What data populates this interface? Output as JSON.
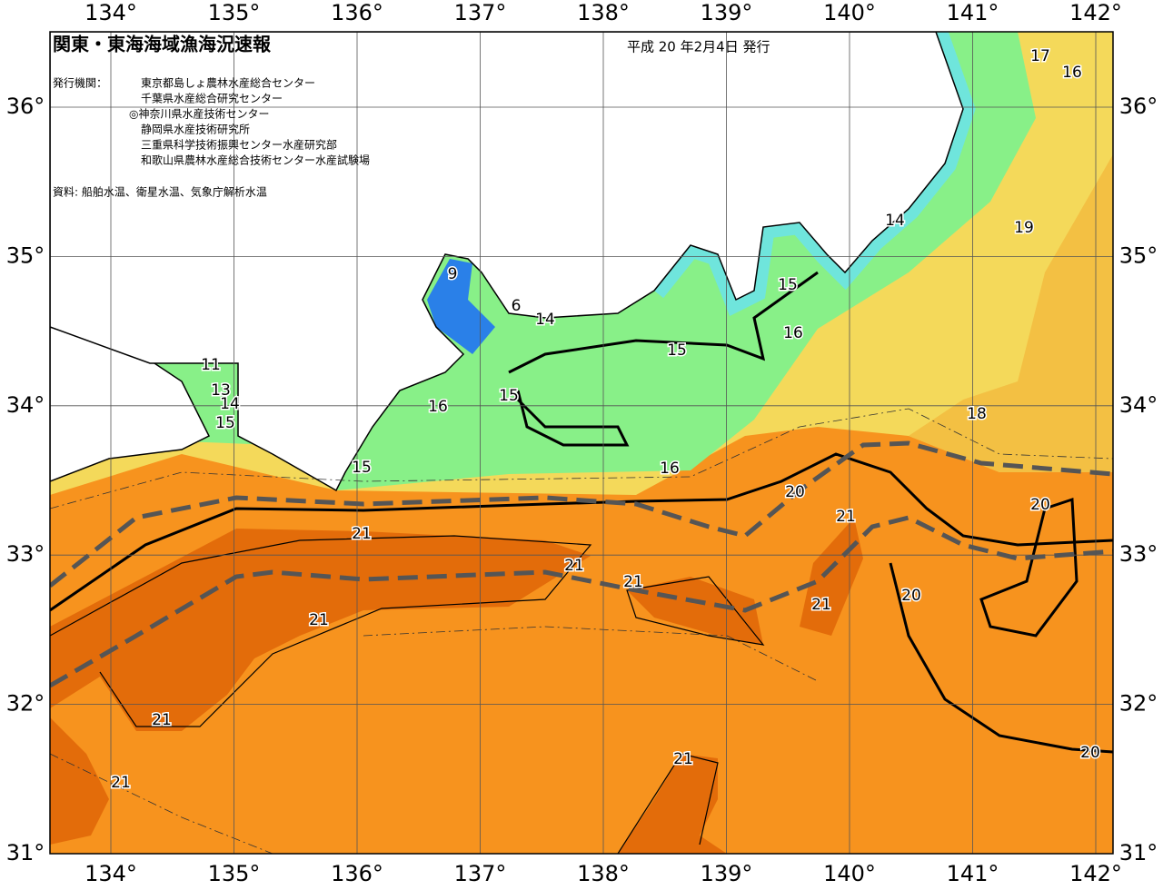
{
  "header": {
    "title": "関東・東海海域漁海況速報",
    "date": "平成 20 年2月4日 発行",
    "agency_label": "発行機関：",
    "agencies": [
      "東京都島しょ農林水産総合センター",
      "千葉県水産総合研究センター",
      "◎神奈川県水産技術センター",
      "静岡県水産技術研究所",
      "三重県科学技術振興センター水産研究部",
      "和歌山県農林水産総合技術センター水産試験場"
    ],
    "source": "資料: 船舶水温、衛星水温、気象庁解析水温"
  },
  "map": {
    "longitude_labels": [
      "134°",
      "135°",
      "136°",
      "137°",
      "138°",
      "139°",
      "140°",
      "141°",
      "142°"
    ],
    "latitude_labels": [
      "36°",
      "35°",
      "34°",
      "33°",
      "32°",
      "31°"
    ],
    "contour_labels": [
      17,
      16,
      14,
      19,
      15,
      16,
      15,
      9,
      6,
      14,
      15,
      16,
      18,
      11,
      13,
      14,
      15,
      15,
      16,
      20,
      21,
      20,
      21,
      21,
      21,
      21,
      20,
      21,
      21,
      21,
      21,
      20
    ]
  }
}
